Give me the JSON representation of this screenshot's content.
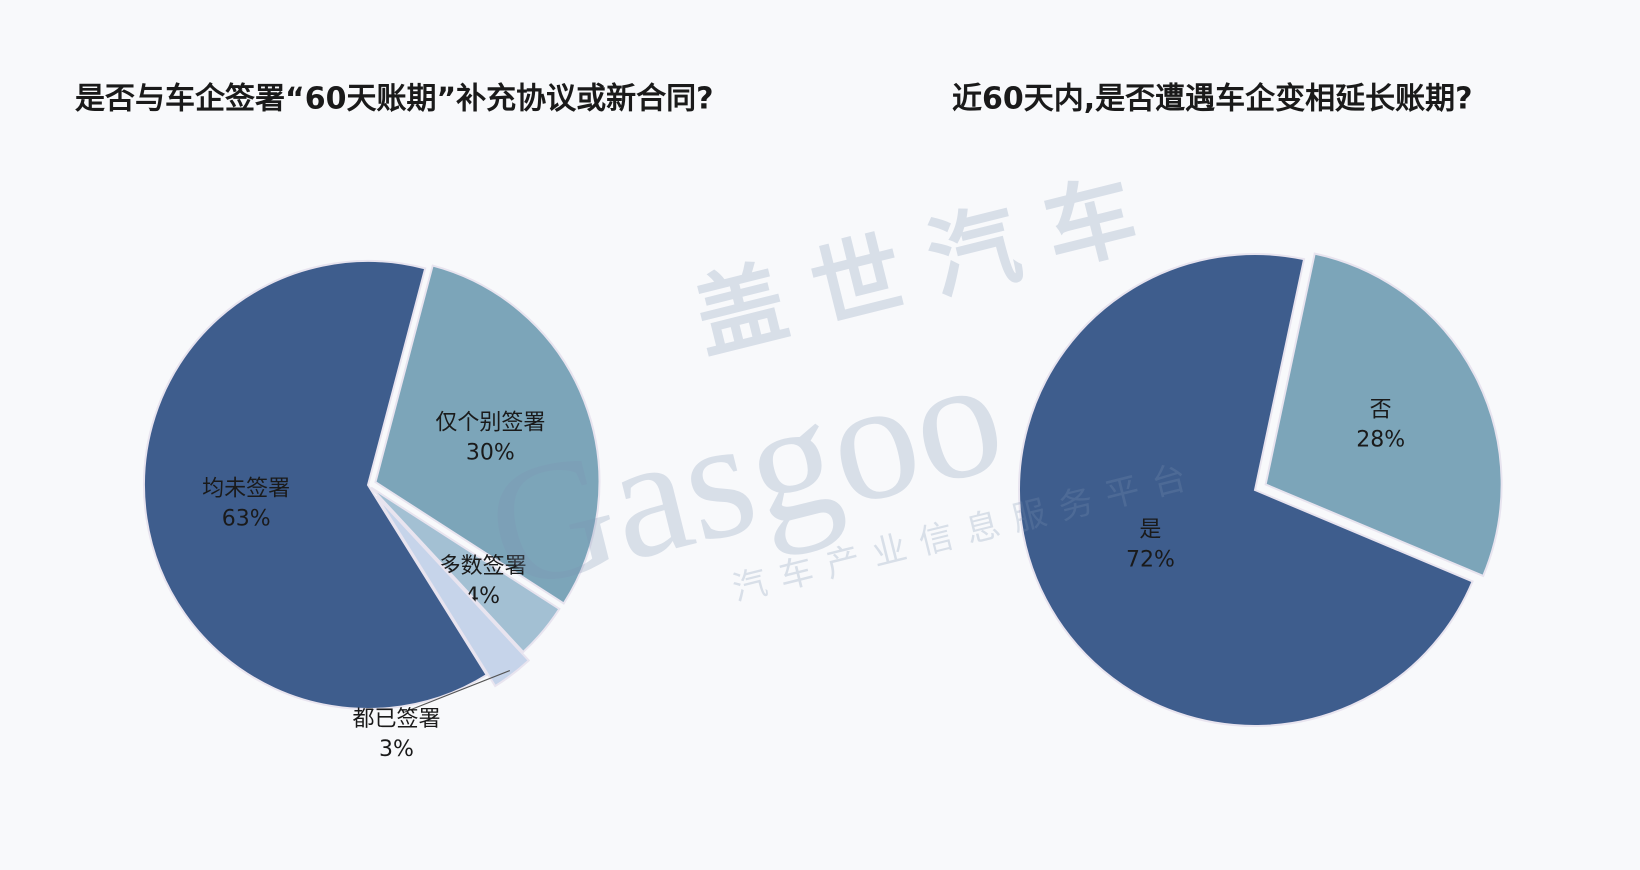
{
  "chart_data": [
    {
      "type": "pie",
      "title": "是否与车企签署“60天账期”补充协议或新合同?",
      "categories": [
        "均未签署",
        "仅个别签署",
        "多数签署",
        "都已签署"
      ],
      "values": [
        63,
        30,
        4,
        3
      ],
      "value_labels": [
        "63%",
        "30%",
        "4%",
        "3%"
      ],
      "colors": [
        "#3e5d8d",
        "#7ca5b9",
        "#a3c0d3",
        "#c6d4ea"
      ]
    },
    {
      "type": "pie",
      "title": "近60天内,是否遭遇车企变相延长账期?",
      "categories": [
        "是",
        "否"
      ],
      "values": [
        72,
        28
      ],
      "value_labels": [
        "72%",
        "28%"
      ],
      "colors": [
        "#3e5d8d",
        "#7ca5b9"
      ]
    }
  ],
  "watermark": {
    "brand_cn": "盖世汽车",
    "brand_en": "Gasgoo",
    "slogan": "汽车产业信息服务平台"
  }
}
